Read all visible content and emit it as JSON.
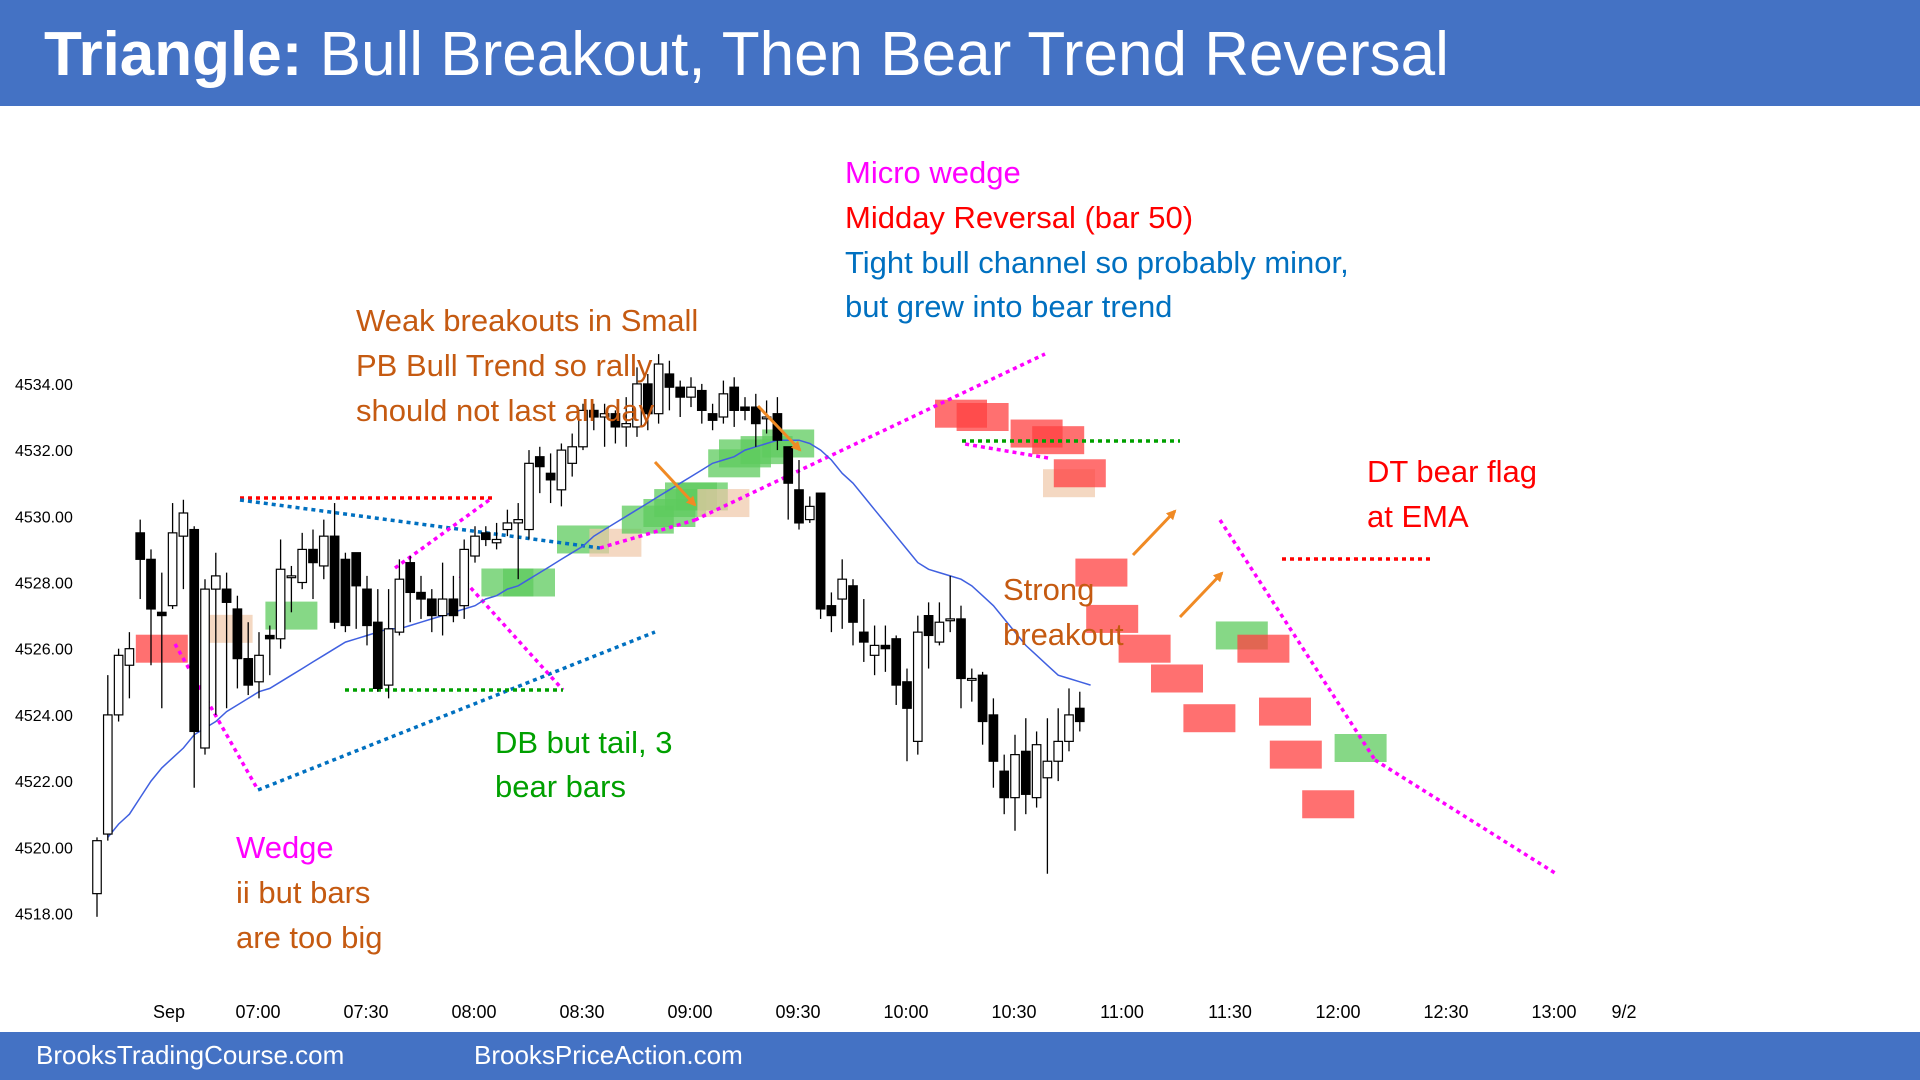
{
  "header": {
    "title_bold": "Triangle:",
    "title_rest": "Bull Breakout, Then Bear Trend Reversal"
  },
  "footer": {
    "left": "BrooksTradingCourse.com",
    "right": "BrooksPriceAction.com"
  },
  "colors": {
    "header_bg": "#4472c4",
    "ema": "#4060e0",
    "bull_box": "#5ecb5e",
    "bear_box": "#ff4040",
    "signal_box": "#f0c8a8",
    "magenta": "#ff00ff",
    "red": "#ff0000",
    "blue": "#0070c0",
    "orange": "#c55a11",
    "green": "#00a000",
    "arrow": "#f08a24"
  },
  "annotations": {
    "micro_wedge": "Micro wedge",
    "midday_reversal": "Midday Reversal (bar 50)",
    "tight_channel_1": "Tight bull channel so probably minor,",
    "tight_channel_2": "but grew into bear trend",
    "weak_1": "Weak breakouts in Small",
    "weak_2": "PB Bull Trend so rally",
    "weak_3": "should not last all day",
    "dt_1": "DT bear flag",
    "dt_2": "at EMA",
    "strong_1": "Strong",
    "strong_2": "breakout",
    "db_1": "DB but tail, 3",
    "db_2": "bear bars",
    "wedge_1": "Wedge",
    "wedge_2": "ii but bars",
    "wedge_3": "are too big"
  },
  "chart_data": {
    "type": "candlestick",
    "title": "Triangle: Bull Breakout, Then Bear Trend Reversal",
    "ylim": [
      4517.0,
      4536.0
    ],
    "y_ticks": [
      "4518.00",
      "4520.00",
      "4522.00",
      "4524.00",
      "4526.00",
      "4528.00",
      "4530.00",
      "4532.00",
      "4534.00"
    ],
    "x_ticks": [
      "Sep",
      "07:00",
      "07:30",
      "08:00",
      "08:30",
      "09:00",
      "09:30",
      "10:00",
      "10:30",
      "11:00",
      "11:30",
      "12:00",
      "12:30",
      "13:00",
      "9/2"
    ],
    "grid": false,
    "bars": [
      [
        4518.6,
        4520.2,
        4517.9,
        4520.3
      ],
      [
        4520.4,
        4524.0,
        4520.2,
        4525.2
      ],
      [
        4524.0,
        4525.8,
        4523.8,
        4526.0
      ],
      [
        4525.5,
        4526.0,
        4524.5,
        4526.5
      ],
      [
        4529.5,
        4528.7,
        4527.5,
        4529.9
      ],
      [
        4528.7,
        4527.2,
        4525.5,
        4529.0
      ],
      [
        4527.1,
        4527.0,
        4524.2,
        4528.3
      ],
      [
        4527.3,
        4529.5,
        4527.2,
        4530.4
      ],
      [
        4529.4,
        4530.1,
        4527.8,
        4530.5
      ],
      [
        4529.6,
        4523.5,
        4521.8,
        4529.7
      ],
      [
        4523.0,
        4527.8,
        4522.8,
        4528.1
      ],
      [
        4527.8,
        4528.2,
        4524.0,
        4528.9
      ],
      [
        4527.8,
        4527.4,
        4524.2,
        4528.3
      ],
      [
        4527.2,
        4525.7,
        4524.8,
        4527.6
      ],
      [
        4525.7,
        4524.9,
        4524.6,
        4526.8
      ],
      [
        4525.0,
        4525.8,
        4524.5,
        4526.5
      ],
      [
        4526.4,
        4526.3,
        4525.2,
        4526.7
      ],
      [
        4526.3,
        4528.4,
        4526.0,
        4529.3
      ],
      [
        4528.2,
        4528.2,
        4527.1,
        4528.5
      ],
      [
        4528.0,
        4529.0,
        4527.8,
        4529.5
      ],
      [
        4529.0,
        4528.6,
        4527.5,
        4529.6
      ],
      [
        4528.5,
        4529.4,
        4528.1,
        4529.9
      ],
      [
        4529.4,
        4526.8,
        4526.6,
        4530.4
      ],
      [
        4528.7,
        4526.7,
        4526.5,
        4528.9
      ],
      [
        4528.9,
        4527.9,
        4526.6,
        4528.8
      ],
      [
        4527.8,
        4526.7,
        4526.1,
        4528.2
      ],
      [
        4526.8,
        4524.8,
        4524.7,
        4527.8
      ],
      [
        4524.9,
        4526.6,
        4524.5,
        4527.8
      ],
      [
        4526.5,
        4528.1,
        4526.4,
        4528.7
      ],
      [
        4528.6,
        4527.7,
        4526.8,
        4528.8
      ],
      [
        4527.7,
        4527.5,
        4526.9,
        4528.2
      ],
      [
        4527.5,
        4527.0,
        4526.5,
        4527.8
      ],
      [
        4527.0,
        4527.5,
        4526.4,
        4528.6
      ],
      [
        4527.5,
        4527.0,
        4526.8,
        4528.2
      ],
      [
        4527.3,
        4529.0,
        4526.9,
        4529.3
      ],
      [
        4528.8,
        4529.4,
        4528.6,
        4529.7
      ],
      [
        4529.5,
        4529.3,
        4529.1,
        4529.7
      ],
      [
        4529.2,
        4529.3,
        4529.0,
        4529.8
      ],
      [
        4529.6,
        4529.8,
        4529.4,
        4530.2
      ],
      [
        4529.8,
        4529.9,
        4528.1,
        4530.4
      ],
      [
        4529.6,
        4531.6,
        4529.3,
        4532.0
      ],
      [
        4531.8,
        4531.5,
        4530.7,
        4532.1
      ],
      [
        4531.3,
        4531.1,
        4530.4,
        4531.9
      ],
      [
        4530.8,
        4532.0,
        4530.3,
        4532.2
      ],
      [
        4531.6,
        4532.1,
        4531.2,
        4532.5
      ],
      [
        4532.1,
        4533.2,
        4532.0,
        4533.4
      ],
      [
        4533.2,
        4533.0,
        4532.6,
        4533.4
      ],
      [
        4533.0,
        4533.1,
        4532.1,
        4533.4
      ],
      [
        4533.1,
        4532.7,
        4532.2,
        4533.2
      ],
      [
        4532.7,
        4532.8,
        4532.1,
        4533.6
      ],
      [
        4532.7,
        4534.0,
        4532.4,
        4534.5
      ],
      [
        4534.0,
        4533.1,
        4532.6,
        4534.3
      ],
      [
        4533.1,
        4534.6,
        4532.8,
        4534.9
      ],
      [
        4534.3,
        4533.9,
        4533.2,
        4534.7
      ],
      [
        4533.9,
        4533.6,
        4533.0,
        4534.1
      ],
      [
        4533.6,
        4533.9,
        4533.3,
        4534.2
      ],
      [
        4533.8,
        4533.2,
        4532.8,
        4534.0
      ],
      [
        4533.1,
        4532.9,
        4532.6,
        4533.4
      ],
      [
        4533.0,
        4533.7,
        4532.8,
        4534.1
      ],
      [
        4533.9,
        4533.2,
        4532.7,
        4534.2
      ],
      [
        4533.3,
        4533.2,
        4532.9,
        4533.6
      ],
      [
        4533.3,
        4532.8,
        4532.1,
        4533.7
      ],
      [
        4533.0,
        4533.0,
        4532.5,
        4533.5
      ],
      [
        4533.1,
        4532.3,
        4532.0,
        4533.6
      ],
      [
        4532.1,
        4531.0,
        4529.9,
        4532.1
      ],
      [
        4530.8,
        4529.8,
        4529.6,
        4531.7
      ],
      [
        4529.9,
        4530.3,
        4529.8,
        4530.6
      ],
      [
        4530.7,
        4527.2,
        4526.9,
        4530.7
      ],
      [
        4527.3,
        4527.0,
        4526.5,
        4527.7
      ],
      [
        4527.5,
        4528.1,
        4526.6,
        4528.7
      ],
      [
        4527.9,
        4526.8,
        4526.1,
        4528.1
      ],
      [
        4526.5,
        4526.2,
        4525.6,
        4527.5
      ],
      [
        4525.8,
        4526.1,
        4525.2,
        4526.7
      ],
      [
        4526.1,
        4526.0,
        4525.3,
        4526.7
      ],
      [
        4526.3,
        4524.9,
        4524.3,
        4526.4
      ],
      [
        4525.0,
        4524.2,
        4522.6,
        4525.4
      ],
      [
        4523.2,
        4526.5,
        4522.8,
        4527.0
      ],
      [
        4527.0,
        4526.4,
        4525.4,
        4527.4
      ],
      [
        4526.2,
        4526.8,
        4526.1,
        4527.4
      ],
      [
        4526.9,
        4526.9,
        4526.5,
        4528.2
      ],
      [
        4526.9,
        4525.1,
        4524.2,
        4527.3
      ],
      [
        4525.1,
        4525.1,
        4524.4,
        4525.4
      ],
      [
        4525.2,
        4523.8,
        4523.1,
        4525.3
      ],
      [
        4524.0,
        4522.6,
        4521.8,
        4524.5
      ],
      [
        4522.3,
        4521.5,
        4521.0,
        4522.8
      ],
      [
        4521.5,
        4522.8,
        4520.5,
        4523.4
      ],
      [
        4522.9,
        4521.6,
        4521.0,
        4523.9
      ],
      [
        4521.5,
        4523.1,
        4521.2,
        4523.5
      ],
      [
        4522.1,
        4522.6,
        4519.2,
        4523.9
      ],
      [
        4522.6,
        4523.2,
        4522.0,
        4524.2
      ],
      [
        4523.2,
        4524.0,
        4522.9,
        4524.8
      ],
      [
        4524.2,
        4523.8,
        4523.5,
        4524.7
      ]
    ],
    "ema": [
      4520.3,
      4520.7,
      4521.0,
      4521.5,
      4522.0,
      4522.4,
      4522.7,
      4523.0,
      4523.4,
      4523.6,
      4523.8,
      4524.1,
      4524.3,
      4524.5,
      4524.7,
      4524.8,
      4525.0,
      4525.2,
      4525.4,
      4525.6,
      4525.8,
      4526.0,
      4526.2,
      4526.3,
      4526.4,
      4526.5,
      4526.6,
      4526.6,
      4526.7,
      4526.8,
      4526.9,
      4527.0,
      4527.1,
      4527.2,
      4527.3,
      4527.5,
      4527.6,
      4527.8,
      4527.9,
      4528.1,
      4528.3,
      4528.5,
      4528.7,
      4528.9,
      4529.1,
      4529.4,
      4529.6,
      4529.8,
      4530.0,
      4530.2,
      4530.4,
      4530.6,
      4530.8,
      4531.0,
      4531.2,
      4531.4,
      4531.6,
      4531.7,
      4531.8,
      4532.0,
      4532.1,
      4532.2,
      4532.3,
      4532.3,
      4532.3,
      4532.2,
      4532.0,
      4531.7,
      4531.3,
      4531.0,
      4530.6,
      4530.2,
      4529.8,
      4529.4,
      4529.0,
      4528.6,
      4528.4,
      4528.3,
      4528.2,
      4528.1,
      4527.9,
      4527.6,
      4527.3,
      4526.9,
      4526.5,
      4526.1,
      4525.8,
      4525.5,
      4525.2,
      4525.1,
      4525.0,
      4524.9
    ]
  }
}
